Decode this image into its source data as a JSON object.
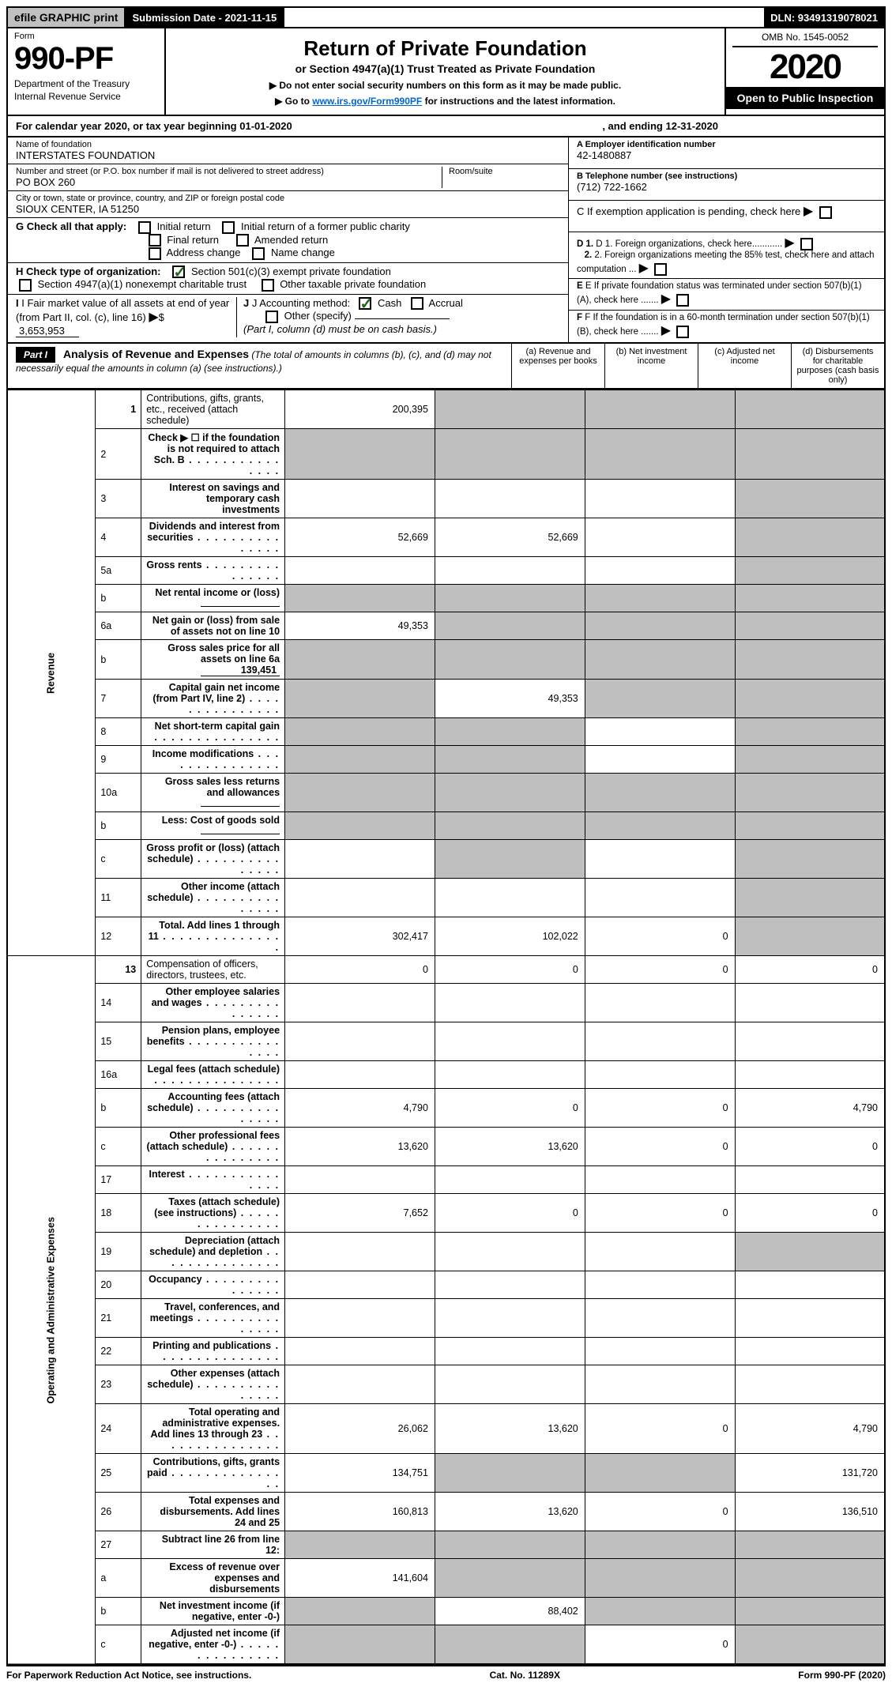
{
  "topbar": {
    "efile": "efile GRAPHIC print",
    "submission": "Submission Date - 2021-11-15",
    "dln": "DLN: 93491319078021"
  },
  "header": {
    "form_label": "Form",
    "form_no": "990-PF",
    "dept1": "Department of the Treasury",
    "dept2": "Internal Revenue Service",
    "title": "Return of Private Foundation",
    "subtitle": "or Section 4947(a)(1) Trust Treated as Private Foundation",
    "note1": "▶ Do not enter social security numbers on this form as it may be made public.",
    "note2_pre": "▶ Go to ",
    "note2_link": "www.irs.gov/Form990PF",
    "note2_post": " for instructions and the latest information.",
    "omb": "OMB No. 1545-0052",
    "year": "2020",
    "open": "Open to Public Inspection"
  },
  "calyear": {
    "prefix": "For calendar year 2020, or tax year beginning ",
    "begin": "01-01-2020",
    "mid": ", and ending ",
    "end": "12-31-2020"
  },
  "foundation": {
    "name_label": "Name of foundation",
    "name": "INTERSTATES FOUNDATION",
    "addr_label": "Number and street (or P.O. box number if mail is not delivered to street address)",
    "addr": "PO BOX 260",
    "room_label": "Room/suite",
    "city_label": "City or town, state or province, country, and ZIP or foreign postal code",
    "city": "SIOUX CENTER, IA  51250",
    "ein_label": "A Employer identification number",
    "ein": "42-1480887",
    "phone_label": "B Telephone number (see instructions)",
    "phone": "(712) 722-1662",
    "c_label": "C If exemption application is pending, check here",
    "d1": "D 1. Foreign organizations, check here............",
    "d2": "2. Foreign organizations meeting the 85% test, check here and attach computation ...",
    "e": "E If private foundation status was terminated under section 507(b)(1)(A), check here .......",
    "f": "F If the foundation is in a 60-month termination under section 507(b)(1)(B), check here .......",
    "g_label": "G Check all that apply:",
    "g_opts": [
      "Initial return",
      "Initial return of a former public charity",
      "Final return",
      "Amended return",
      "Address change",
      "Name change"
    ],
    "h_label": "H Check type of organization:",
    "h_opts": [
      "Section 501(c)(3) exempt private foundation",
      "Section 4947(a)(1) nonexempt charitable trust",
      "Other taxable private foundation"
    ],
    "i_label": "I Fair market value of all assets at end of year (from Part II, col. (c), line 16)",
    "i_value": "3,653,953",
    "j_label": "J Accounting method:",
    "j_opts": [
      "Cash",
      "Accrual",
      "Other (specify)"
    ],
    "j_note": "(Part I, column (d) must be on cash basis.)"
  },
  "part1": {
    "badge": "Part I",
    "title": "Analysis of Revenue and Expenses",
    "note": "(The total of amounts in columns (b), (c), and (d) may not necessarily equal the amounts in column (a) (see instructions).)",
    "cols": {
      "a": "(a) Revenue and expenses per books",
      "b": "(b) Net investment income",
      "c": "(c) Adjusted net income",
      "d": "(d) Disbursements for charitable purposes (cash basis only)"
    }
  },
  "sections": {
    "revenue": "Revenue",
    "opex": "Operating and Administrative Expenses"
  },
  "lines": [
    {
      "n": "1",
      "t": "Contributions, gifts, grants, etc., received (attach schedule)",
      "a": "200,395",
      "b": "",
      "c": "",
      "d": "",
      "sb": true,
      "sc": true,
      "sd": true
    },
    {
      "n": "2",
      "t": "Check ▶ ☐ if the foundation is <b>not</b> required to attach Sch. B",
      "dots": true,
      "a": "",
      "b": "",
      "c": "",
      "d": "",
      "sa": true,
      "sb": true,
      "sc": true,
      "sd": true
    },
    {
      "n": "3",
      "t": "Interest on savings and temporary cash investments",
      "a": "",
      "b": "",
      "c": "",
      "d": "",
      "sd": true
    },
    {
      "n": "4",
      "t": "Dividends and interest from securities",
      "dots": true,
      "a": "52,669",
      "b": "52,669",
      "c": "",
      "d": "",
      "sd": true
    },
    {
      "n": "5a",
      "t": "Gross rents",
      "dots": true,
      "a": "",
      "b": "",
      "c": "",
      "d": "",
      "sd": true
    },
    {
      "n": "b",
      "t": "Net rental income or (loss)",
      "inline": "",
      "a": "",
      "b": "",
      "c": "",
      "d": "",
      "sa": true,
      "sb": true,
      "sc": true,
      "sd": true
    },
    {
      "n": "6a",
      "t": "Net gain or (loss) from sale of assets not on line 10",
      "a": "49,353",
      "b": "",
      "c": "",
      "d": "",
      "sb": true,
      "sc": true,
      "sd": true
    },
    {
      "n": "b",
      "t": "Gross sales price for all assets on line 6a",
      "inline": "139,451",
      "a": "",
      "b": "",
      "c": "",
      "d": "",
      "sa": true,
      "sb": true,
      "sc": true,
      "sd": true
    },
    {
      "n": "7",
      "t": "Capital gain net income (from Part IV, line 2)",
      "dots": true,
      "a": "",
      "b": "49,353",
      "c": "",
      "d": "",
      "sa": true,
      "sc": true,
      "sd": true
    },
    {
      "n": "8",
      "t": "Net short-term capital gain",
      "dots": true,
      "a": "",
      "b": "",
      "c": "",
      "d": "",
      "sa": true,
      "sb": true,
      "sd": true
    },
    {
      "n": "9",
      "t": "Income modifications",
      "dots": true,
      "a": "",
      "b": "",
      "c": "",
      "d": "",
      "sa": true,
      "sb": true,
      "sd": true
    },
    {
      "n": "10a",
      "t": "Gross sales less returns and allowances",
      "inline": "",
      "a": "",
      "b": "",
      "c": "",
      "d": "",
      "sa": true,
      "sb": true,
      "sc": true,
      "sd": true
    },
    {
      "n": "b",
      "t": "Less: Cost of goods sold",
      "dots": true,
      "inline": "",
      "a": "",
      "b": "",
      "c": "",
      "d": "",
      "sa": true,
      "sb": true,
      "sc": true,
      "sd": true
    },
    {
      "n": "c",
      "t": "Gross profit or (loss) (attach schedule)",
      "dots": true,
      "a": "",
      "b": "",
      "c": "",
      "d": "",
      "sb": true,
      "sd": true
    },
    {
      "n": "11",
      "t": "Other income (attach schedule)",
      "dots": true,
      "a": "",
      "b": "",
      "c": "",
      "d": "",
      "sd": true
    },
    {
      "n": "12",
      "t": "<b>Total.</b> Add lines 1 through 11",
      "dots": true,
      "a": "302,417",
      "b": "102,022",
      "c": "0",
      "d": "",
      "sd": true
    },
    {
      "n": "13",
      "t": "Compensation of officers, directors, trustees, etc.",
      "a": "0",
      "b": "0",
      "c": "0",
      "d": "0"
    },
    {
      "n": "14",
      "t": "Other employee salaries and wages",
      "dots": true,
      "a": "",
      "b": "",
      "c": "",
      "d": ""
    },
    {
      "n": "15",
      "t": "Pension plans, employee benefits",
      "dots": true,
      "a": "",
      "b": "",
      "c": "",
      "d": ""
    },
    {
      "n": "16a",
      "t": "Legal fees (attach schedule)",
      "dots": true,
      "a": "",
      "b": "",
      "c": "",
      "d": ""
    },
    {
      "n": "b",
      "t": "Accounting fees (attach schedule)",
      "dots": true,
      "a": "4,790",
      "b": "0",
      "c": "0",
      "d": "4,790"
    },
    {
      "n": "c",
      "t": "Other professional fees (attach schedule)",
      "dots": true,
      "a": "13,620",
      "b": "13,620",
      "c": "0",
      "d": "0"
    },
    {
      "n": "17",
      "t": "Interest",
      "dots": true,
      "a": "",
      "b": "",
      "c": "",
      "d": ""
    },
    {
      "n": "18",
      "t": "Taxes (attach schedule) (see instructions)",
      "dots": true,
      "a": "7,652",
      "b": "0",
      "c": "0",
      "d": "0"
    },
    {
      "n": "19",
      "t": "Depreciation (attach schedule) and depletion",
      "dots": true,
      "a": "",
      "b": "",
      "c": "",
      "d": "",
      "sd": true
    },
    {
      "n": "20",
      "t": "Occupancy",
      "dots": true,
      "a": "",
      "b": "",
      "c": "",
      "d": ""
    },
    {
      "n": "21",
      "t": "Travel, conferences, and meetings",
      "dots": true,
      "a": "",
      "b": "",
      "c": "",
      "d": ""
    },
    {
      "n": "22",
      "t": "Printing and publications",
      "dots": true,
      "a": "",
      "b": "",
      "c": "",
      "d": ""
    },
    {
      "n": "23",
      "t": "Other expenses (attach schedule)",
      "dots": true,
      "a": "",
      "b": "",
      "c": "",
      "d": ""
    },
    {
      "n": "24",
      "t": "<b>Total operating and administrative expenses.</b> Add lines 13 through 23",
      "dots": true,
      "a": "26,062",
      "b": "13,620",
      "c": "0",
      "d": "4,790"
    },
    {
      "n": "25",
      "t": "Contributions, gifts, grants paid",
      "dots": true,
      "a": "134,751",
      "b": "",
      "c": "",
      "d": "131,720",
      "sb": true,
      "sc": true
    },
    {
      "n": "26",
      "t": "<b>Total expenses and disbursements.</b> Add lines 24 and 25",
      "a": "160,813",
      "b": "13,620",
      "c": "0",
      "d": "136,510"
    },
    {
      "n": "27",
      "t": "Subtract line 26 from line 12:",
      "a": "",
      "b": "",
      "c": "",
      "d": "",
      "sa": true,
      "sb": true,
      "sc": true,
      "sd": true
    },
    {
      "n": "a",
      "t": "<b>Excess of revenue over expenses and disbursements</b>",
      "a": "141,604",
      "b": "",
      "c": "",
      "d": "",
      "sb": true,
      "sc": true,
      "sd": true
    },
    {
      "n": "b",
      "t": "<b>Net investment income</b> (if negative, enter -0-)",
      "a": "",
      "b": "88,402",
      "c": "",
      "d": "",
      "sa": true,
      "sc": true,
      "sd": true
    },
    {
      "n": "c",
      "t": "<b>Adjusted net income</b> (if negative, enter -0-)",
      "dots": true,
      "a": "",
      "b": "",
      "c": "0",
      "d": "",
      "sa": true,
      "sb": true,
      "sd": true
    }
  ],
  "footer": {
    "left": "For Paperwork Reduction Act Notice, see instructions.",
    "mid": "Cat. No. 11289X",
    "right": "Form 990-PF (2020)"
  }
}
